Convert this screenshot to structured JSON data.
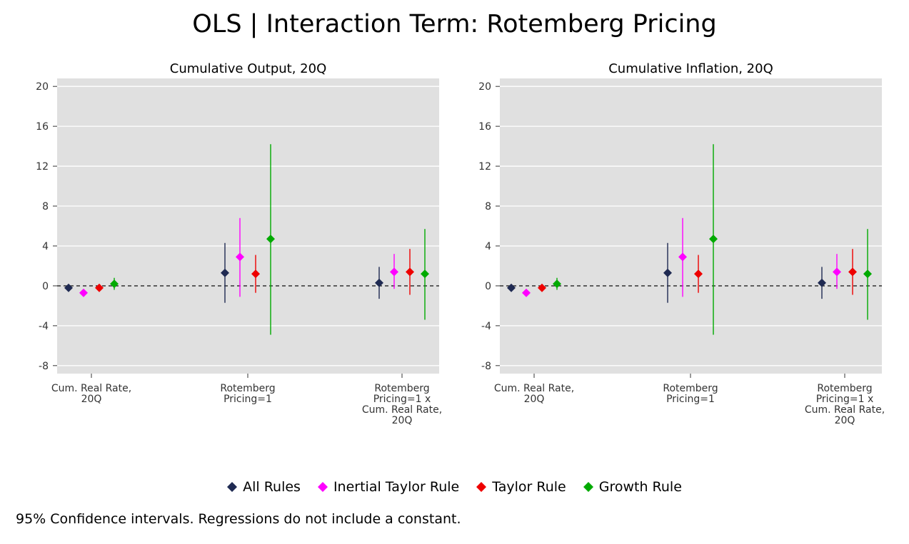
{
  "title": "OLS | Interaction Term: Rotemberg Pricing",
  "note": "95% Confidence intervals. Regressions do not include a constant.",
  "legend": [
    {
      "name": "All Rules",
      "color": "#1f2a52"
    },
    {
      "name": "Inertial Taylor Rule",
      "color": "#ff00ff"
    },
    {
      "name": "Taylor Rule",
      "color": "#ee0000"
    },
    {
      "name": "Growth Rule",
      "color": "#00aa00"
    }
  ],
  "chart_data": [
    {
      "type": "scatter",
      "title": "Cumulative Output, 20Q",
      "categories": [
        [
          "Cum. Real Rate,",
          "20Q"
        ],
        [
          "Rotemberg",
          "Pricing=1"
        ],
        [
          "Rotemberg",
          "Pricing=1 x",
          "Cum. Real Rate,",
          "20Q"
        ]
      ],
      "ylim": [
        -8.8,
        20.8
      ],
      "yticks": [
        -8,
        -4,
        0,
        4,
        8,
        12,
        16,
        20
      ],
      "reference_line": 0,
      "series": [
        {
          "name": "All Rules",
          "color": "#1f2a52",
          "values": [
            -0.2,
            1.3,
            0.3
          ],
          "ci_low": [
            -0.3,
            -1.7,
            -1.3
          ],
          "ci_high": [
            -0.1,
            4.3,
            1.9
          ]
        },
        {
          "name": "Inertial Taylor Rule",
          "color": "#ff00ff",
          "values": [
            -0.7,
            2.9,
            1.4
          ],
          "ci_low": [
            -0.8,
            -1.1,
            -0.3
          ],
          "ci_high": [
            -0.6,
            6.8,
            3.2
          ]
        },
        {
          "name": "Taylor Rule",
          "color": "#ee0000",
          "values": [
            -0.2,
            1.2,
            1.4
          ],
          "ci_low": [
            -0.3,
            -0.7,
            -0.9
          ],
          "ci_high": [
            -0.1,
            3.1,
            3.7
          ]
        },
        {
          "name": "Growth Rule",
          "color": "#00aa00",
          "values": [
            0.2,
            4.7,
            1.2
          ],
          "ci_low": [
            -0.4,
            -4.9,
            -3.4
          ],
          "ci_high": [
            0.8,
            14.2,
            5.7
          ]
        }
      ]
    },
    {
      "type": "scatter",
      "title": "Cumulative Inflation, 20Q",
      "categories": [
        [
          "Cum. Real Rate,",
          "20Q"
        ],
        [
          "Rotemberg",
          "Pricing=1"
        ],
        [
          "Rotemberg",
          "Pricing=1 x",
          "Cum. Real Rate,",
          "20Q"
        ]
      ],
      "ylim": [
        -8.8,
        20.8
      ],
      "yticks": [
        -8,
        -4,
        0,
        4,
        8,
        12,
        16,
        20
      ],
      "reference_line": 0,
      "series": [
        {
          "name": "All Rules",
          "color": "#1f2a52",
          "values": [
            -0.2,
            1.3,
            0.3
          ],
          "ci_low": [
            -0.3,
            -1.7,
            -1.3
          ],
          "ci_high": [
            -0.1,
            4.3,
            1.9
          ]
        },
        {
          "name": "Inertial Taylor Rule",
          "color": "#ff00ff",
          "values": [
            -0.7,
            2.9,
            1.4
          ],
          "ci_low": [
            -0.8,
            -1.1,
            -0.3
          ],
          "ci_high": [
            -0.6,
            6.8,
            3.2
          ]
        },
        {
          "name": "Taylor Rule",
          "color": "#ee0000",
          "values": [
            -0.2,
            1.2,
            1.4
          ],
          "ci_low": [
            -0.3,
            -0.7,
            -0.9
          ],
          "ci_high": [
            -0.1,
            3.1,
            3.7
          ]
        },
        {
          "name": "Growth Rule",
          "color": "#00aa00",
          "values": [
            0.2,
            4.7,
            1.2
          ],
          "ci_low": [
            -0.4,
            -4.9,
            -3.4
          ],
          "ci_high": [
            0.8,
            14.2,
            5.7
          ]
        }
      ]
    }
  ]
}
